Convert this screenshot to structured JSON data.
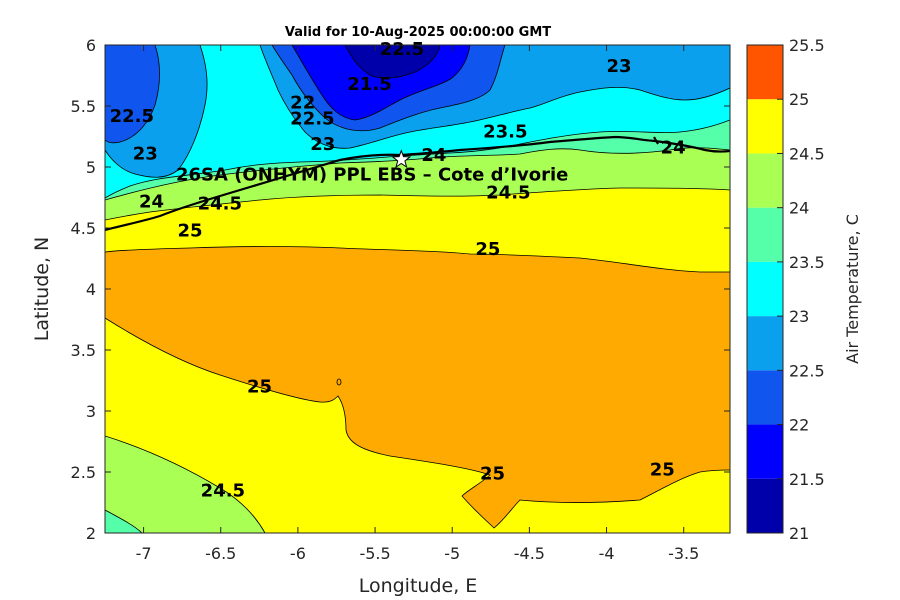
{
  "title": "Valid for 10-Aug-2025 00:00:00 GMT",
  "xlabel": "Longitude, E",
  "ylabel": "Latitude, N",
  "colorbar_label": "Air Temperature, C",
  "site": {
    "label": "26SA (ONHYM) PPL EBS  – Cote d’Ivorie",
    "lon": -5.33,
    "lat": 5.06
  },
  "x_ticks": [
    "-7",
    "-6.5",
    "-6",
    "-5.5",
    "-5",
    "-4.5",
    "-4",
    "-3.5"
  ],
  "y_ticks": [
    "6",
    "5.5",
    "5",
    "4.5",
    "4",
    "3.5",
    "3",
    "2.5",
    "2"
  ],
  "colorbar_ticks": [
    "25.5",
    "25",
    "24.5",
    "24",
    "23.5",
    "23",
    "22.5",
    "22",
    "21.5",
    "21"
  ],
  "colors": {
    "c21": "#0000aa",
    "c21_5": "#0000ff",
    "c22": "#0f55ee",
    "c22_5": "#0aa0ee",
    "c23": "#00ffff",
    "c23_5": "#55ffaa",
    "c24": "#aaff55",
    "c24_5": "#ffff00",
    "c25": "#ffaa00",
    "c25_5": "#ff5500",
    "coast": "#000000",
    "contour": "#000000"
  },
  "chart_data": {
    "type": "heatmap",
    "variable": "Air Temperature, C",
    "xlim": [
      -7.25,
      -3.2
    ],
    "ylim": [
      2,
      6
    ],
    "clim": [
      21,
      25.5
    ],
    "levels": [
      21,
      21.5,
      22,
      22.5,
      23,
      23.5,
      24,
      24.5,
      25,
      25.5
    ],
    "contour_labels": [
      {
        "text": "22.5",
        "lon": -5.47,
        "lat": 5.92
      },
      {
        "text": "23",
        "lon": -4.0,
        "lat": 5.78
      },
      {
        "text": "21.5",
        "lon": -5.68,
        "lat": 5.63
      },
      {
        "text": "22.5",
        "lon": -7.22,
        "lat": 5.37
      },
      {
        "text": "22",
        "lon": -6.05,
        "lat": 5.48
      },
      {
        "text": "22.5",
        "lon": -6.05,
        "lat": 5.35
      },
      {
        "text": "23.5",
        "lon": -4.8,
        "lat": 5.24
      },
      {
        "text": "23",
        "lon": -5.92,
        "lat": 5.14
      },
      {
        "text": "23",
        "lon": -7.07,
        "lat": 5.06
      },
      {
        "text": "24",
        "lon": -5.2,
        "lat": 5.05
      },
      {
        "text": "24",
        "lon": -3.65,
        "lat": 5.11
      },
      {
        "text": "24.5",
        "lon": -4.78,
        "lat": 4.74
      },
      {
        "text": "24",
        "lon": -7.03,
        "lat": 4.67
      },
      {
        "text": "24.5",
        "lon": -6.65,
        "lat": 4.65
      },
      {
        "text": "25",
        "lon": -6.78,
        "lat": 4.43
      },
      {
        "text": "25",
        "lon": -4.85,
        "lat": 4.28
      },
      {
        "text": "25",
        "lon": -6.33,
        "lat": 3.15
      },
      {
        "text": "25",
        "lon": -4.82,
        "lat": 2.44
      },
      {
        "text": "25",
        "lon": -3.72,
        "lat": 2.47
      },
      {
        "text": "24.5",
        "lon": -6.63,
        "lat": 2.3
      }
    ]
  }
}
